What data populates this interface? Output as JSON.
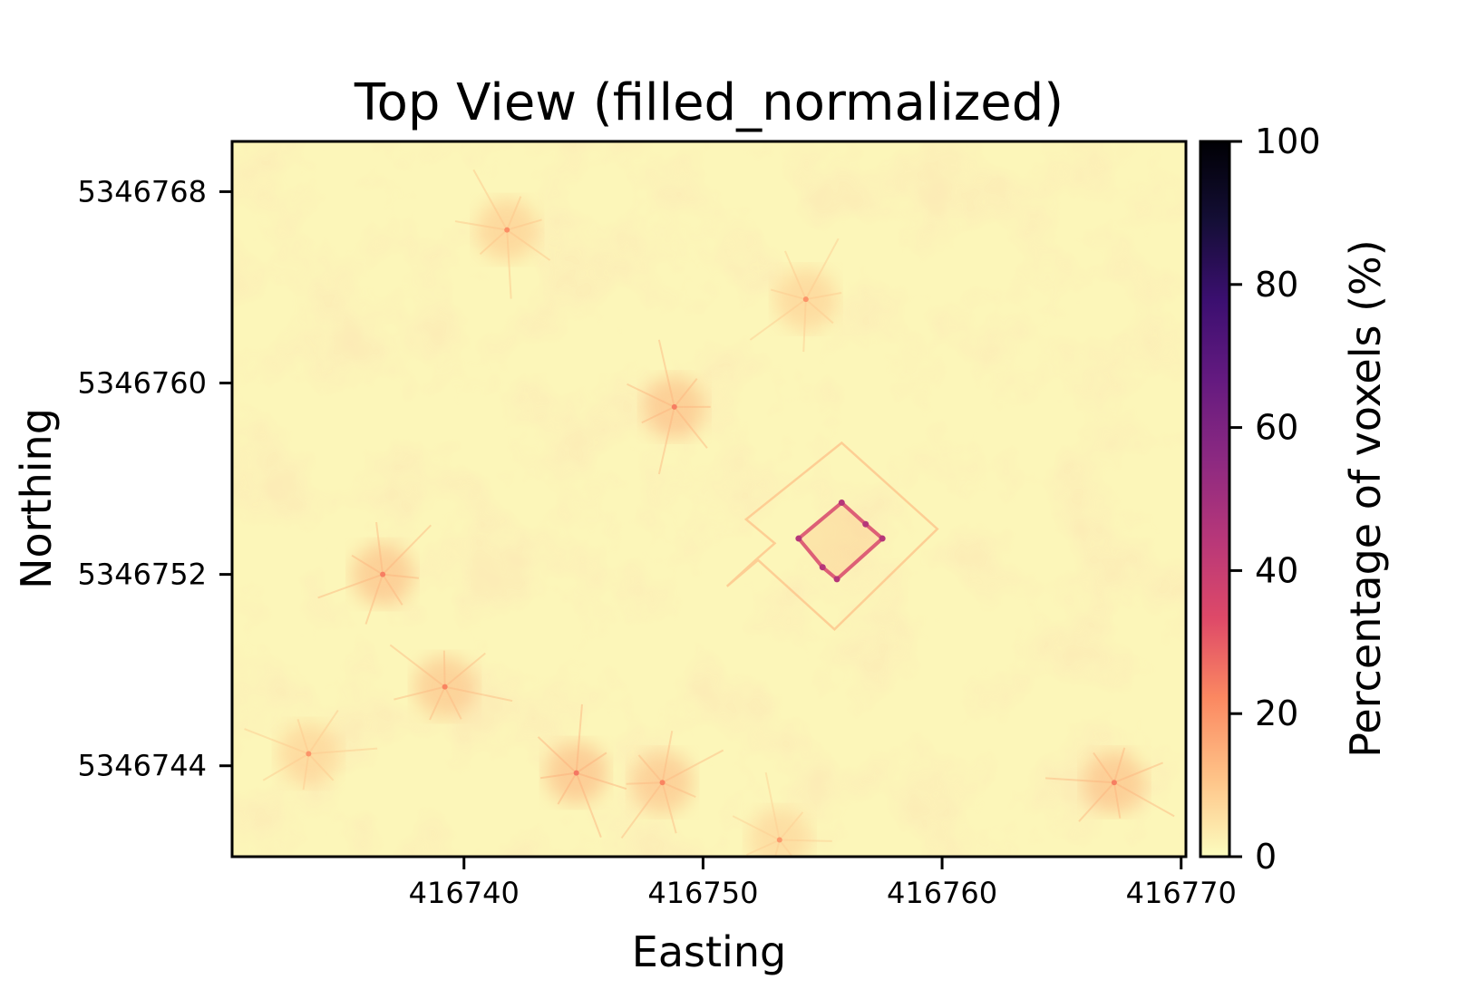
{
  "chart_data": {
    "type": "heatmap",
    "title": "Top View (filled_normalized)",
    "xlabel": "Easting",
    "ylabel": "Northing",
    "x_ticks": [
      416740,
      416750,
      416760,
      416770
    ],
    "y_ticks": [
      5346768,
      5346760,
      5346752,
      5346744
    ],
    "xlim": [
      416730.3,
      416770.2
    ],
    "ylim": [
      5346740.2,
      5346770.1
    ],
    "colorbar": {
      "label": "Percentage of voxels (%)",
      "ticks": [
        0,
        20,
        40,
        60,
        80,
        100
      ],
      "range": [
        0,
        100
      ],
      "colormap": "magma_r",
      "colors": [
        "#fcfdbf",
        "#fec287",
        "#fb8861",
        "#de4968",
        "#b73779",
        "#8c2981",
        "#641a80",
        "#3b0f70",
        "#140e36",
        "#000004"
      ]
    },
    "background_value_pct": 3,
    "features": [
      {
        "kind": "structure-outline-strong",
        "value_pct": 35,
        "polygon": [
          [
            416754.0,
            5346753.5
          ],
          [
            416755.8,
            5346755.0
          ],
          [
            416756.8,
            5346754.1
          ],
          [
            416757.5,
            5346753.5
          ],
          [
            416755.6,
            5346751.8
          ],
          [
            416755.0,
            5346752.3
          ]
        ]
      },
      {
        "kind": "structure-outline-faint",
        "value_pct": 12,
        "polygon": [
          [
            416751.0,
            5346751.5
          ],
          [
            416752.2,
            5346752.6
          ],
          [
            416753.0,
            5346753.3
          ],
          [
            416751.8,
            5346754.3
          ],
          [
            416755.8,
            5346757.5
          ],
          [
            416759.8,
            5346753.9
          ],
          [
            416755.5,
            5346749.7
          ],
          [
            416752.3,
            5346752.6
          ],
          [
            416751.0,
            5346751.5
          ]
        ]
      },
      {
        "kind": "hotspot",
        "value_pct": 14,
        "easting": 416748.8,
        "northing": 5346759.0
      },
      {
        "kind": "hotspot",
        "value_pct": 14,
        "easting": 416736.6,
        "northing": 5346752.0
      },
      {
        "kind": "hotspot",
        "value_pct": 13,
        "easting": 416739.2,
        "northing": 5346747.3
      },
      {
        "kind": "hotspot",
        "value_pct": 15,
        "easting": 416744.7,
        "northing": 5346743.7
      },
      {
        "kind": "hotspot",
        "value_pct": 13,
        "easting": 416748.3,
        "northing": 5346743.3
      },
      {
        "kind": "hotspot",
        "value_pct": 14,
        "easting": 416767.2,
        "northing": 5346743.3
      },
      {
        "kind": "hotspot",
        "value_pct": 11,
        "easting": 416741.8,
        "northing": 5346766.4
      },
      {
        "kind": "hotspot",
        "value_pct": 10,
        "easting": 416754.3,
        "northing": 5346763.5
      },
      {
        "kind": "hotspot",
        "value_pct": 10,
        "easting": 416733.5,
        "northing": 5346744.5
      },
      {
        "kind": "hotspot",
        "value_pct": 9,
        "easting": 416753.2,
        "northing": 5346740.9
      }
    ]
  }
}
